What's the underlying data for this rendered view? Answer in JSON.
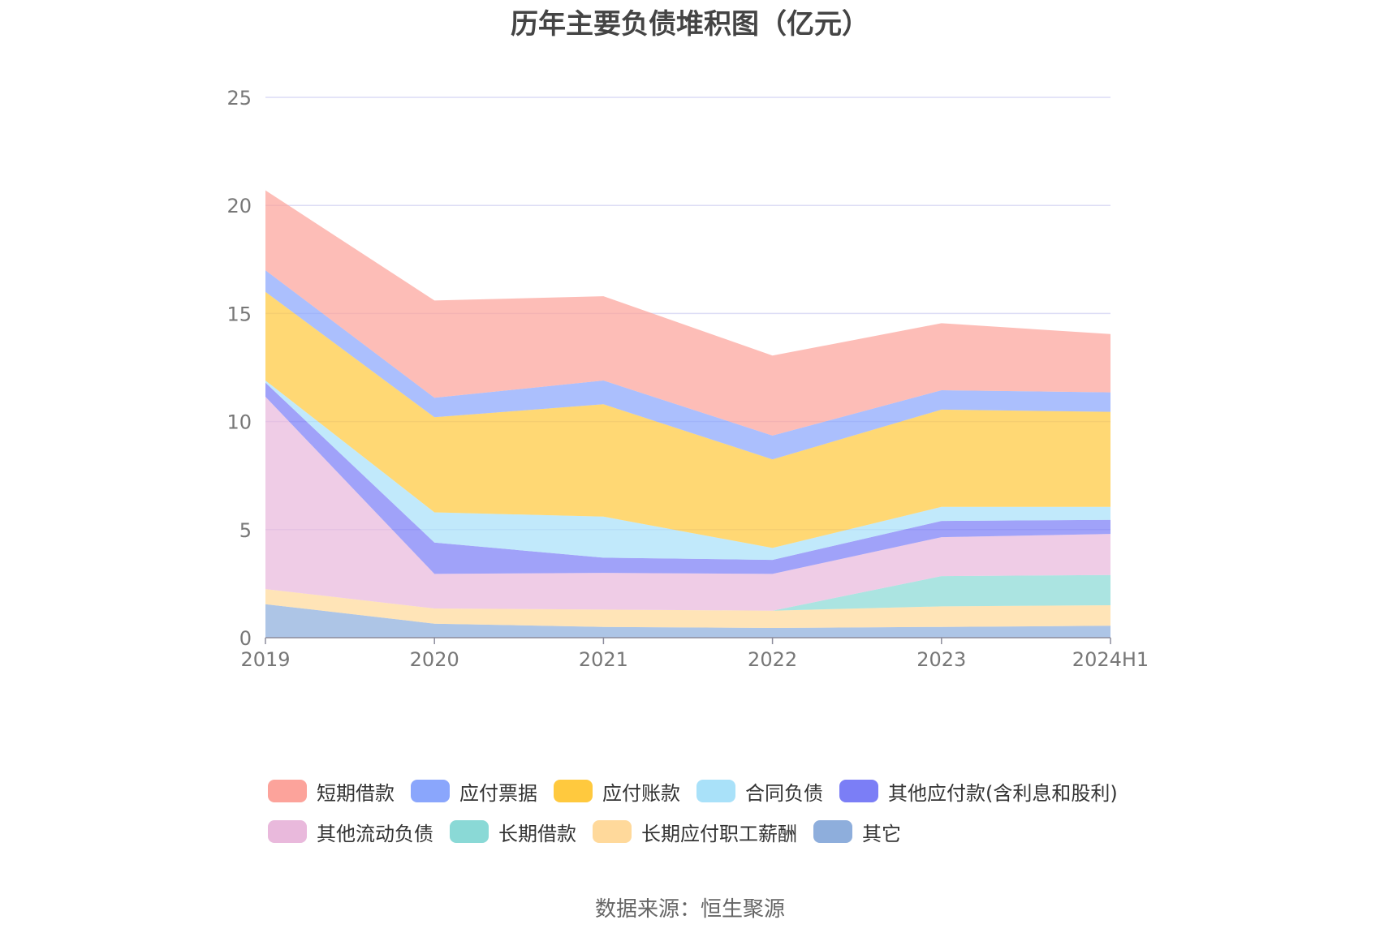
{
  "chart_data": {
    "type": "area",
    "stacked": true,
    "title": "历年主要负债堆积图（亿元）",
    "xlabel": "",
    "ylabel": "",
    "categories": [
      "2019",
      "2020",
      "2021",
      "2022",
      "2023",
      "2024H1"
    ],
    "y_ticks": [
      "0",
      "5",
      "10",
      "15",
      "20",
      "25"
    ],
    "ylim": [
      0,
      25
    ],
    "grid": true,
    "legend_position": "bottom",
    "series": [
      {
        "name": "其它",
        "color": "#8eaedc",
        "values": [
          1.55,
          0.65,
          0.5,
          0.45,
          0.5,
          0.55
        ]
      },
      {
        "name": "长期应付职工薪酬",
        "color": "#ffd99b",
        "values": [
          0.7,
          0.7,
          0.8,
          0.8,
          0.95,
          0.95
        ]
      },
      {
        "name": "长期借款",
        "color": "#8ad9d6",
        "values": [
          0,
          0,
          0,
          0,
          1.4,
          1.4
        ]
      },
      {
        "name": "其他流动负债",
        "color": "#e9b9dc",
        "values": [
          8.9,
          1.6,
          1.7,
          1.7,
          1.8,
          1.9
        ]
      },
      {
        "name": "其他应付款(含利息和股利)",
        "color": "#7b7ef6",
        "values": [
          0.65,
          1.45,
          0.7,
          0.65,
          0.75,
          0.65
        ]
      },
      {
        "name": "合同负债",
        "color": "#a9e1f9",
        "values": [
          0.1,
          1.4,
          1.9,
          0.55,
          0.65,
          0.6
        ]
      },
      {
        "name": "应付账款",
        "color": "#ffc93e",
        "values": [
          4.1,
          4.4,
          5.2,
          4.1,
          4.5,
          4.4
        ]
      },
      {
        "name": "应付票据",
        "color": "#8aa6fc",
        "values": [
          1.0,
          0.9,
          1.1,
          1.1,
          0.9,
          0.9
        ]
      },
      {
        "name": "短期借款",
        "color": "#fca39b",
        "values": [
          3.7,
          4.5,
          3.9,
          3.7,
          3.1,
          2.7
        ]
      }
    ]
  },
  "legend": [
    {
      "label": "短期借款",
      "color": "#fca39b"
    },
    {
      "label": "应付票据",
      "color": "#8aa6fc"
    },
    {
      "label": "应付账款",
      "color": "#ffc93e"
    },
    {
      "label": "合同负债",
      "color": "#a9e1f9"
    },
    {
      "label": "其他应付款(含利息和股利)",
      "color": "#7b7ef6"
    },
    {
      "label": "其他流动负债",
      "color": "#e9b9dc"
    },
    {
      "label": "长期借款",
      "color": "#8ad9d6"
    },
    {
      "label": "长期应付职工薪酬",
      "color": "#ffd99b"
    },
    {
      "label": "其它",
      "color": "#8eaedc"
    }
  ],
  "source": "数据来源：恒生聚源"
}
